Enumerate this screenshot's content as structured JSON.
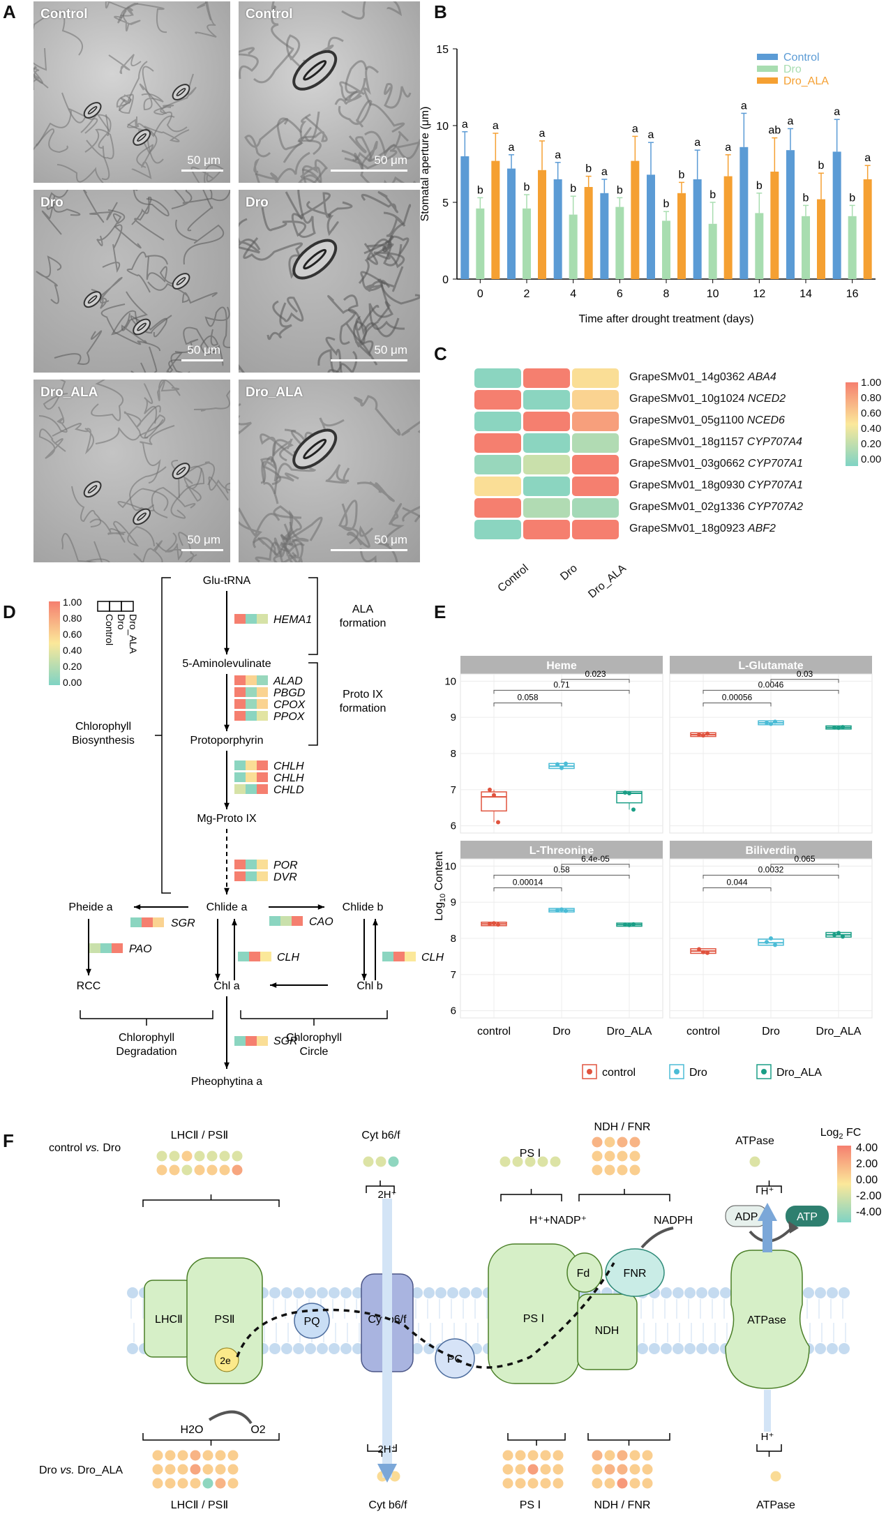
{
  "panels": {
    "A": "A",
    "B": "B",
    "C": "C",
    "D": "D",
    "E": "E",
    "F": "F"
  },
  "panelA": {
    "images": [
      {
        "label": "Control",
        "scale": "50 μm"
      },
      {
        "label": "Control",
        "scale": "50 μm"
      },
      {
        "label": "Dro",
        "scale": "50 μm"
      },
      {
        "label": "Dro",
        "scale": "50 μm"
      },
      {
        "label": "Dro_ALA",
        "scale": "50 μm"
      },
      {
        "label": "Dro_ALA",
        "scale": "50 μm"
      }
    ]
  },
  "colors": {
    "control": "#5b9bd5",
    "dro": "#a8ddb0",
    "dro_ala": "#f5a032",
    "heat_low": "#7fd3c4",
    "heat_mid": "#fbe89a",
    "heat_high": "#f57f6f"
  },
  "chart_data": [
    {
      "type": "bar",
      "ylabel": "Stomatal aperture (μm)",
      "xlabel": "Time after drought treatment (days)",
      "ylim": [
        0,
        15
      ],
      "yticks": [
        0,
        5,
        10,
        15
      ],
      "categories": [
        "0",
        "2",
        "4",
        "6",
        "8",
        "10",
        "12",
        "14",
        "16"
      ],
      "legend_position": "top-right",
      "series": [
        {
          "name": "Control",
          "values": [
            8.0,
            7.2,
            6.5,
            5.6,
            6.8,
            6.5,
            8.6,
            8.4,
            8.3
          ],
          "errors": [
            1.6,
            0.9,
            1.1,
            0.9,
            2.1,
            1.9,
            2.2,
            1.4,
            2.1
          ],
          "letters": [
            "a",
            "a",
            "a",
            "a",
            "a",
            "a",
            "a",
            "a",
            "a"
          ]
        },
        {
          "name": "Dro",
          "values": [
            4.6,
            4.6,
            4.2,
            4.7,
            3.8,
            3.6,
            4.3,
            4.1,
            4.1
          ],
          "errors": [
            0.7,
            0.9,
            1.2,
            0.6,
            0.6,
            1.4,
            1.3,
            0.7,
            0.7
          ],
          "letters": [
            "b",
            "b",
            "b",
            "b",
            "b",
            "b",
            "b",
            "b",
            "b"
          ]
        },
        {
          "name": "Dro_ALA",
          "values": [
            7.7,
            7.1,
            6.0,
            7.7,
            5.6,
            6.7,
            7.0,
            5.2,
            6.5
          ],
          "errors": [
            1.8,
            1.9,
            0.7,
            1.6,
            0.7,
            1.4,
            2.2,
            1.7,
            0.9
          ],
          "letters": [
            "a",
            "a",
            "b",
            "a",
            "b",
            "a",
            "ab",
            "b",
            "a"
          ]
        }
      ]
    },
    {
      "type": "heatmap",
      "columns": [
        "Control",
        "Dro",
        "Dro_ALA"
      ],
      "rows": [
        {
          "id": "GrapeSMv01_14g0362",
          "gene": "ABA4",
          "values": [
            0.05,
            1.0,
            0.55
          ]
        },
        {
          "id": "GrapeSMv01_10g1024",
          "gene": "NCED2",
          "values": [
            1.0,
            0.05,
            0.6
          ]
        },
        {
          "id": "GrapeSMv01_05g1100",
          "gene": "NCED6",
          "values": [
            0.05,
            1.0,
            0.85
          ]
        },
        {
          "id": "GrapeSMv01_18g1157",
          "gene": "CYP707A4",
          "values": [
            1.0,
            0.05,
            0.2
          ]
        },
        {
          "id": "GrapeSMv01_03g0662",
          "gene": "CYP707A1",
          "values": [
            0.1,
            0.3,
            1.0
          ]
        },
        {
          "id": "GrapeSMv01_18g0930",
          "gene": "CYP707A1",
          "values": [
            0.55,
            0.05,
            1.0
          ]
        },
        {
          "id": "GrapeSMv01_02g1336",
          "gene": "CYP707A2",
          "values": [
            1.0,
            0.2,
            0.15
          ]
        },
        {
          "id": "GrapeSMv01_18g0923",
          "gene": "ABF2",
          "values": [
            0.05,
            1.0,
            1.0
          ]
        }
      ],
      "colorbar_ticks": [
        "1.00",
        "0.80",
        "0.60",
        "0.40",
        "0.20",
        "0.00"
      ]
    },
    {
      "type": "box",
      "ylabel": "Log10 Content",
      "categories": [
        "control",
        "Dro",
        "Dro_ALA"
      ],
      "legend": [
        "control",
        "Dro",
        "Dro_ALA"
      ],
      "yticks": [
        6,
        7,
        8,
        9,
        10
      ],
      "facets": [
        {
          "title": "Heme",
          "medians": [
            6.8,
            7.65,
            6.9
          ],
          "points": [
            [
              7.0,
              6.85,
              6.1
            ],
            [
              7.7,
              7.6,
              7.72
            ],
            [
              6.92,
              6.9,
              6.45
            ]
          ],
          "pvalues": [
            "0.058",
            "0.71",
            "0.023"
          ]
        },
        {
          "title": "L-Glutamate",
          "medians": [
            8.52,
            8.85,
            8.72
          ],
          "points": [
            [
              8.52,
              8.5,
              8.55
            ],
            [
              8.85,
              8.82,
              8.88
            ],
            [
              8.72,
              8.71,
              8.73
            ]
          ],
          "pvalues": [
            "0.00056",
            "0.0046",
            "0.03"
          ]
        },
        {
          "title": "L-Threonine",
          "medians": [
            8.4,
            8.78,
            8.38
          ],
          "points": [
            [
              8.4,
              8.42,
              8.38
            ],
            [
              8.78,
              8.8,
              8.76
            ],
            [
              8.38,
              8.37,
              8.39
            ]
          ],
          "pvalues": [
            "0.00014",
            "0.58",
            "6.4e-05"
          ]
        },
        {
          "title": "Biliverdin",
          "medians": [
            7.65,
            7.88,
            8.1
          ],
          "points": [
            [
              7.7,
              7.62,
              7.6
            ],
            [
              7.9,
              8.0,
              7.82
            ],
            [
              8.1,
              8.15,
              8.05
            ]
          ],
          "pvalues": [
            "0.044",
            "0.0032",
            "0.065"
          ]
        }
      ]
    }
  ],
  "panelD": {
    "legend_cols": [
      "Control",
      "Dro",
      "Dro_ALA"
    ],
    "colorbar_ticks": [
      "1.00",
      "0.80",
      "0.60",
      "0.40",
      "0.20",
      "0.00"
    ],
    "nodes": {
      "glu": "Glu-tRNA",
      "ala": "5-Aminolevulinate",
      "proto": "Protoporphyrin",
      "mg": "Mg-Proto IX",
      "chlide_a": "Chlide a",
      "chlide_b": "Chlide b",
      "pheide": "Pheide a",
      "rcc": "RCC",
      "chl_a": "Chl a",
      "chl_b": "Chl b",
      "pheo": "Pheophytina a"
    },
    "groups": {
      "ala_formation": "ALA formation",
      "proto_formation": "Proto IX formation",
      "biosynthesis": "Chlorophyll Biosynthesis",
      "degradation": "Chlorophyll Degradation",
      "circle": "Chlorophyll Circle"
    },
    "genes": {
      "hema1": "HEMA1",
      "alad": "ALAD",
      "pbgd": "PBGD",
      "cpox": "CPOX",
      "ppox": "PPOX",
      "chlh1": "CHLH",
      "chlh2": "CHLH",
      "chld": "CHLD",
      "por": "POR",
      "dvr": "DVR",
      "sgr1": "SGR",
      "cao": "CAO",
      "pao": "PAO",
      "clh1": "CLH",
      "clh2": "CLH",
      "sgr2": "SGR"
    }
  },
  "panelE": {
    "ylabel_main": "Log",
    "ylabel_sub": "10",
    "ylabel_rest": " Content"
  },
  "panelF": {
    "legend_title": "Log",
    "legend_sub": "2",
    "legend_rest": " FC",
    "legend_ticks": [
      "4.00",
      "2.00",
      "0.00",
      "-2.00",
      "-4.00"
    ],
    "comparisons": {
      "top": "control vs. Dro",
      "bottom": "Dro vs. Dro_ALA"
    },
    "top_labels": {
      "lhc_ps2": "LHCⅡ / PSⅡ",
      "cyt": "Cyt b6/f",
      "ps1": "PS Ⅰ",
      "ndh_fnr": "NDH / FNR",
      "atpase": "ATPase"
    },
    "bottom_labels": {
      "lhc_ps2": "LHCⅡ / PSⅡ",
      "cyt": "Cyt b6/f",
      "ps1": "PS Ⅰ",
      "ndh_fnr": "NDH / FNR",
      "atpase": "ATPase"
    },
    "complexes": {
      "lhc": "LHCⅡ",
      "ps2": "PSⅡ",
      "pq": "PQ",
      "cyt": "Cyt b6/f",
      "pc": "PC",
      "ps1": "PS Ⅰ",
      "ndh": "NDH",
      "fd": "Fd",
      "fnr": "FNR",
      "atpase": "ATPase",
      "e2": "2e",
      "adp": "ADP",
      "atp": "ATP"
    },
    "flows": {
      "h2o": "H2O",
      "o2": "O2",
      "proton_top": "2H⁺",
      "proton_bottom": "2H⁺",
      "nadp": "H⁺+NADP⁺",
      "nadph": "NADPH",
      "h_top": "H⁺",
      "h_bottom": "H⁺"
    }
  }
}
